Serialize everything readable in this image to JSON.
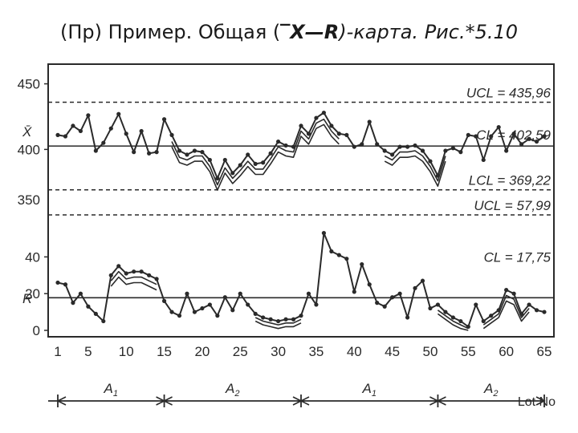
{
  "title": {
    "prefix": "(Пр) Пример. Общая (",
    "x_symbol": "‾X",
    "dash": "—",
    "r_symbol": "R",
    "suffix": ")-карта. Рис.*5.10"
  },
  "chart_data": {
    "type": "line",
    "xbar": {
      "axis_label": "X̄",
      "y_ticks": [
        400,
        450
      ],
      "ylim": [
        355,
        465
      ],
      "limits": {
        "ucl": {
          "label": "UCL = 435,96",
          "value": 435.96
        },
        "cl": {
          "label": "CL = 402,59",
          "value": 402.59
        },
        "lcl": {
          "label": "LCL = 369,22",
          "value": 369.22
        }
      },
      "series": [
        {
          "values": [
            411,
            410,
            418,
            414,
            426,
            399,
            405,
            416,
            427,
            412,
            398,
            414,
            397,
            398,
            423,
            411,
            399,
            396,
            399,
            398,
            392,
            378,
            392,
            382,
            388,
            396,
            389,
            390,
            397,
            406,
            403,
            402,
            418,
            412,
            424,
            428,
            418,
            412,
            411,
            402,
            404,
            421,
            404,
            399,
            396,
            402,
            402,
            403,
            399,
            391,
            380,
            399,
            401,
            398,
            411,
            410,
            392,
            410,
            417,
            399,
            412,
            404,
            408,
            406,
            410
          ]
        },
        {
          "values": [
            null,
            null,
            null,
            null,
            null,
            null,
            null,
            null,
            null,
            null,
            null,
            null,
            null,
            null,
            null,
            406,
            394,
            392,
            395,
            395,
            387,
            373,
            386,
            378,
            384,
            391,
            385,
            385,
            393,
            402,
            399,
            398,
            414,
            408,
            420,
            423,
            414,
            408,
            null,
            null,
            null,
            null,
            null,
            395,
            392,
            398,
            398,
            399,
            395,
            387,
            376,
            395,
            null,
            null,
            null,
            null,
            null,
            null,
            null,
            null,
            null,
            null,
            null,
            null,
            null
          ]
        },
        {
          "values": [
            null,
            null,
            null,
            null,
            null,
            null,
            null,
            null,
            null,
            null,
            null,
            null,
            null,
            null,
            null,
            402,
            390,
            388,
            391,
            391,
            383,
            369,
            382,
            374,
            380,
            387,
            381,
            381,
            389,
            398,
            395,
            394,
            410,
            404,
            416,
            419,
            410,
            404,
            null,
            null,
            null,
            null,
            null,
            391,
            388,
            394,
            394,
            395,
            391,
            383,
            372,
            391,
            null,
            null,
            null,
            null,
            null,
            null,
            null,
            null,
            null,
            null,
            null,
            null,
            null
          ]
        }
      ]
    },
    "r": {
      "axis_label": "R",
      "y_ticks": [
        0,
        20,
        40
      ],
      "ylim": [
        0,
        62
      ],
      "limits": {
        "ucl": {
          "label": "UCL = 57,99",
          "value": 57.99
        },
        "cl": {
          "label": "CL = 17,75",
          "value": 17.75
        }
      },
      "series": [
        {
          "values": [
            26,
            25,
            15,
            20,
            13,
            9,
            5,
            30,
            35,
            31,
            32,
            32,
            30,
            28,
            16,
            10,
            8,
            20,
            10,
            12,
            14,
            8,
            18,
            11,
            20,
            14,
            9,
            7,
            6,
            5,
            6,
            6,
            8,
            20,
            14,
            53,
            43,
            41,
            39,
            21,
            36,
            25,
            15,
            13,
            18,
            20,
            7,
            23,
            27,
            12,
            14,
            10,
            7,
            5,
            2,
            14,
            5,
            8,
            11,
            22,
            20,
            9,
            14,
            11,
            10
          ]
        },
        {
          "values": [
            null,
            null,
            null,
            null,
            null,
            null,
            null,
            27,
            32,
            28,
            29,
            29,
            27,
            25,
            null,
            null,
            null,
            null,
            null,
            null,
            null,
            null,
            null,
            null,
            null,
            null,
            7,
            5,
            4,
            3,
            4,
            4,
            6,
            null,
            null,
            null,
            null,
            null,
            null,
            null,
            null,
            null,
            null,
            null,
            null,
            null,
            null,
            null,
            null,
            null,
            11,
            8,
            5,
            3,
            1,
            null,
            3,
            6,
            9,
            19,
            17,
            7,
            12,
            null,
            null
          ]
        },
        {
          "values": [
            null,
            null,
            null,
            null,
            null,
            null,
            null,
            24,
            29,
            25,
            26,
            26,
            24,
            22,
            null,
            null,
            null,
            null,
            null,
            null,
            null,
            null,
            null,
            null,
            null,
            null,
            5,
            3,
            2,
            1,
            2,
            2,
            4,
            null,
            null,
            null,
            null,
            null,
            null,
            null,
            null,
            null,
            null,
            null,
            null,
            null,
            null,
            null,
            null,
            null,
            9,
            6,
            3,
            1,
            0,
            null,
            1,
            4,
            7,
            16,
            14,
            5,
            10,
            null,
            null
          ]
        }
      ]
    },
    "x_ticks": [
      1,
      5,
      10,
      15,
      20,
      25,
      30,
      35,
      40,
      45,
      50,
      55,
      60,
      65
    ],
    "x_range": [
      1,
      65
    ],
    "segments": [
      {
        "main": "A",
        "sub": "1",
        "start": 1,
        "end": 15
      },
      {
        "main": "A",
        "sub": "2",
        "start": 15,
        "end": 33
      },
      {
        "main": "A",
        "sub": "1",
        "start": 33,
        "end": 51
      },
      {
        "main": "A",
        "sub": "2",
        "start": 51,
        "end": 65
      }
    ],
    "x_axis_end_label": "Lot No"
  }
}
